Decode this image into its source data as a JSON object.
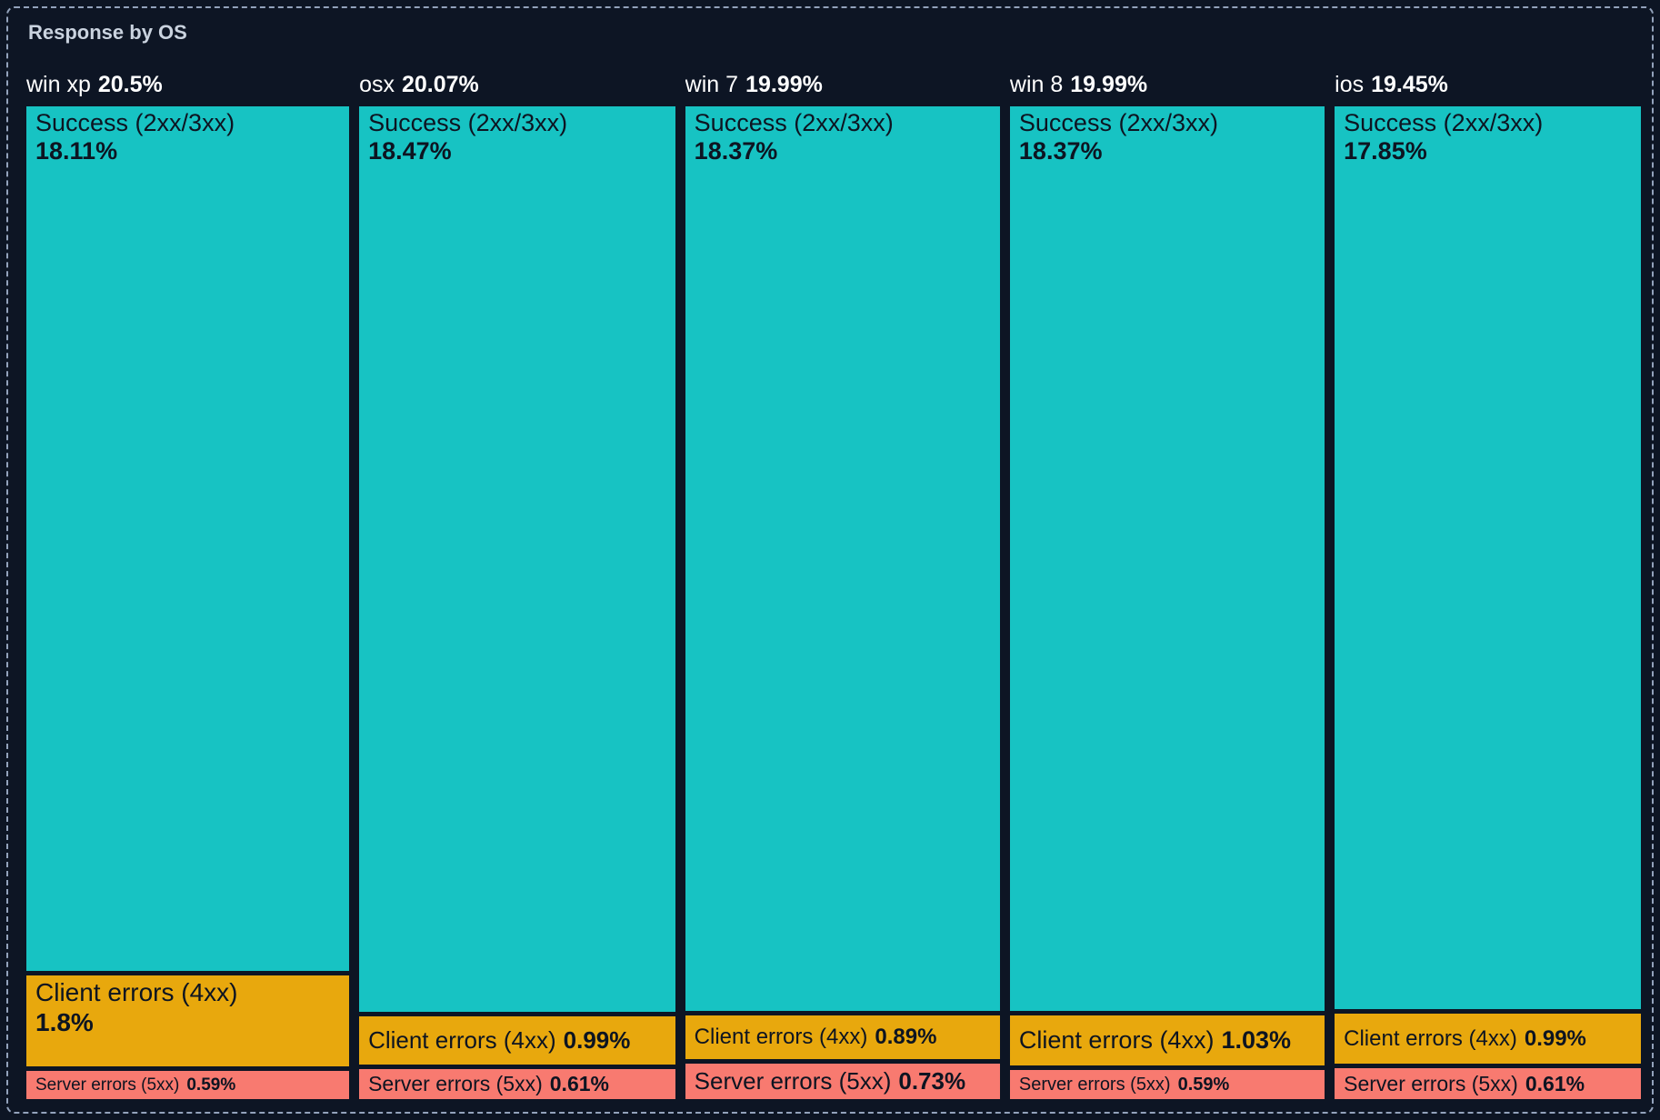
{
  "title": "Response by OS",
  "colors": {
    "success": "#17c3c3",
    "client_errors": "#e8a80d",
    "server_errors": "#f87a70",
    "background": "#0d1524",
    "segment_label_text": "#0d1421",
    "header_text": "#ffffff",
    "title_text": "#cad3df",
    "dashed_border": "#93a2bb"
  },
  "chart_data": {
    "type": "icicle",
    "title": "Response by OS",
    "unit": "%",
    "categories_legend": [
      "Success (2xx/3xx)",
      "Client errors (4xx)",
      "Server errors (5xx)"
    ],
    "columns": [
      {
        "os": "win xp",
        "total_label": "20.5%",
        "total": 20.5,
        "segments": [
          {
            "label": "Success (2xx/3xx)",
            "pct": "18.11%",
            "value": 18.11,
            "category": "success"
          },
          {
            "label": "Client errors (4xx)",
            "pct": "1.8%",
            "value": 1.8,
            "category": "client_errors"
          },
          {
            "label": "Server errors (5xx)",
            "pct": "0.59%",
            "value": 0.59,
            "category": "server_errors"
          }
        ]
      },
      {
        "os": "osx",
        "total_label": "20.07%",
        "total": 20.07,
        "segments": [
          {
            "label": "Success (2xx/3xx)",
            "pct": "18.47%",
            "value": 18.47,
            "category": "success"
          },
          {
            "label": "Client errors (4xx)",
            "pct": "0.99%",
            "value": 0.99,
            "category": "client_errors"
          },
          {
            "label": "Server errors (5xx)",
            "pct": "0.61%",
            "value": 0.61,
            "category": "server_errors"
          }
        ]
      },
      {
        "os": "win 7",
        "total_label": "19.99%",
        "total": 19.99,
        "segments": [
          {
            "label": "Success (2xx/3xx)",
            "pct": "18.37%",
            "value": 18.37,
            "category": "success"
          },
          {
            "label": "Client errors (4xx)",
            "pct": "0.89%",
            "value": 0.89,
            "category": "client_errors"
          },
          {
            "label": "Server errors (5xx)",
            "pct": "0.73%",
            "value": 0.73,
            "category": "server_errors"
          }
        ]
      },
      {
        "os": "win 8",
        "total_label": "19.99%",
        "total": 19.99,
        "segments": [
          {
            "label": "Success (2xx/3xx)",
            "pct": "18.37%",
            "value": 18.37,
            "category": "success"
          },
          {
            "label": "Client errors (4xx)",
            "pct": "1.03%",
            "value": 1.03,
            "category": "client_errors"
          },
          {
            "label": "Server errors (5xx)",
            "pct": "0.59%",
            "value": 0.59,
            "category": "server_errors"
          }
        ]
      },
      {
        "os": "ios",
        "total_label": "19.45%",
        "total": 19.45,
        "segments": [
          {
            "label": "Success (2xx/3xx)",
            "pct": "17.85%",
            "value": 17.85,
            "category": "success"
          },
          {
            "label": "Client errors (4xx)",
            "pct": "0.99%",
            "value": 0.99,
            "category": "client_errors"
          },
          {
            "label": "Server errors (5xx)",
            "pct": "0.61%",
            "value": 0.61,
            "category": "server_errors"
          }
        ]
      }
    ]
  }
}
